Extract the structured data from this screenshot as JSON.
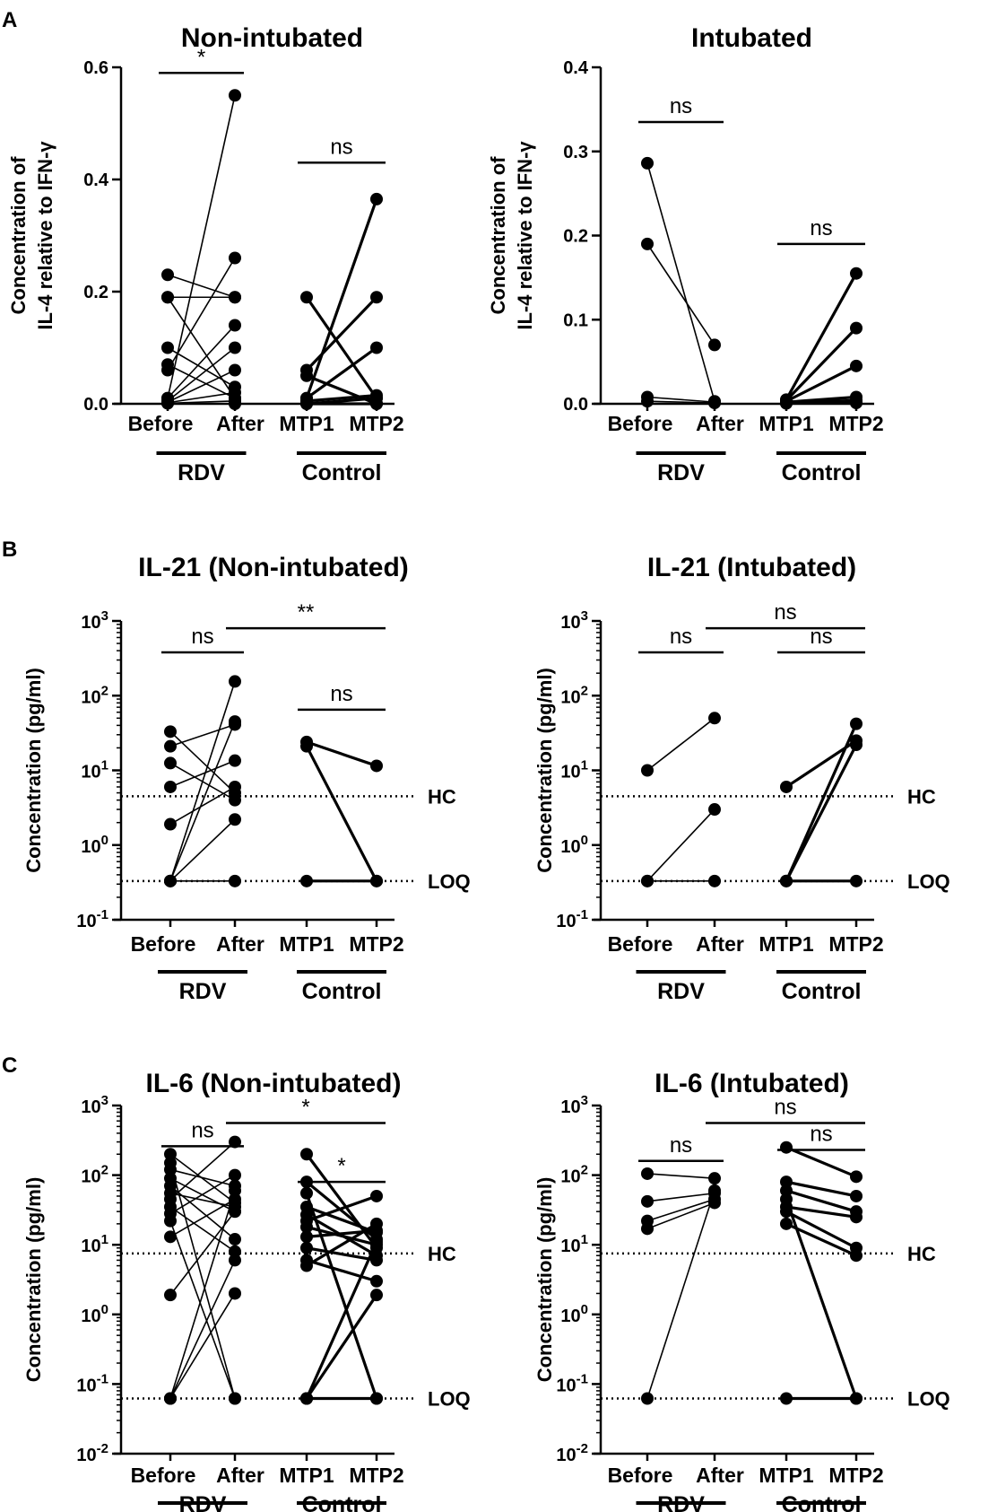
{
  "figure": {
    "panel_labels": [
      "A",
      "B",
      "C"
    ]
  },
  "common": {
    "x_ticks": [
      "Before",
      "After",
      "MTP1",
      "MTP2"
    ],
    "groups": [
      "RDV",
      "Control"
    ],
    "ylabel_ratio": [
      "Concentration of",
      "IL-4 relative to IFN-γ"
    ],
    "ylabel_conc": "Concentration (pg/ml)",
    "log_ticks": {
      "B": [
        {
          "base": "10",
          "exp": "-1"
        },
        {
          "base": "10",
          "exp": "0"
        },
        {
          "base": "10",
          "exp": "1"
        },
        {
          "base": "10",
          "exp": "2"
        },
        {
          "base": "10",
          "exp": "3"
        }
      ],
      "C": [
        {
          "base": "10",
          "exp": "-2"
        },
        {
          "base": "10",
          "exp": "-1"
        },
        {
          "base": "10",
          "exp": "0"
        },
        {
          "base": "10",
          "exp": "1"
        },
        {
          "base": "10",
          "exp": "2"
        },
        {
          "base": "10",
          "exp": "3"
        }
      ]
    },
    "ref_lines": {
      "hc": "HC",
      "loq": "LOQ"
    }
  },
  "chart_data": [
    {
      "id": "A-left",
      "type": "line",
      "title": "Non-intubated",
      "ylim": [
        0,
        0.6
      ],
      "yticks": [
        "0.0",
        "0.2",
        "0.4",
        "0.6"
      ],
      "rdv_pairs": [
        [
          0.23,
          0.19
        ],
        [
          0.19,
          0.01
        ],
        [
          0.19,
          0.19
        ],
        [
          0.1,
          0.03
        ],
        [
          0.07,
          0.01
        ],
        [
          0.06,
          0.26
        ],
        [
          0.01,
          0.14
        ],
        [
          0.01,
          0.55
        ],
        [
          0.005,
          0.1
        ],
        [
          0.003,
          0.06
        ],
        [
          0.002,
          0.02
        ],
        [
          0.001,
          0.005
        ],
        [
          0.001,
          0.0
        ]
      ],
      "control_pairs": [
        [
          0.19,
          0.01
        ],
        [
          0.06,
          0.19
        ],
        [
          0.05,
          0.0
        ],
        [
          0.01,
          0.365
        ],
        [
          0.01,
          0.1
        ],
        [
          0.005,
          0.015
        ],
        [
          0.0,
          0.01
        ],
        [
          0.0,
          0.0
        ]
      ],
      "comparisons": [
        {
          "label": "*",
          "between": [
            "Before",
            "After"
          ],
          "y": 0.59
        },
        {
          "label": "ns",
          "between": [
            "MTP1",
            "MTP2"
          ],
          "y": 0.43
        }
      ]
    },
    {
      "id": "A-right",
      "type": "line",
      "title": "Intubated",
      "ylim": [
        0,
        0.4
      ],
      "yticks": [
        "0.0",
        "0.1",
        "0.2",
        "0.3",
        "0.4"
      ],
      "rdv_pairs": [
        [
          0.286,
          0.003
        ],
        [
          0.19,
          0.07
        ],
        [
          0.008,
          0.002
        ],
        [
          0.003,
          0.001
        ]
      ],
      "control_pairs": [
        [
          0.005,
          0.155
        ],
        [
          0.004,
          0.09
        ],
        [
          0.003,
          0.045
        ],
        [
          0.002,
          0.008
        ],
        [
          0.001,
          0.004
        ],
        [
          0.001,
          0.002
        ],
        [
          0.0005,
          0.001
        ]
      ],
      "comparisons": [
        {
          "label": "ns",
          "between": [
            "Before",
            "After"
          ],
          "y": 0.335
        },
        {
          "label": "ns",
          "between": [
            "MTP1",
            "MTP2"
          ],
          "y": 0.19
        }
      ]
    },
    {
      "id": "B-left",
      "type": "line",
      "title": "IL-21 (Non-intubated)",
      "yscale": "log",
      "ylim": [
        0.1,
        1000
      ],
      "hc": 4.5,
      "loq": 0.33,
      "rdv_pairs": [
        [
          33,
          5
        ],
        [
          21,
          41
        ],
        [
          12.5,
          4
        ],
        [
          6,
          13.5
        ],
        [
          1.9,
          6
        ],
        [
          0.33,
          155
        ],
        [
          0.33,
          45
        ],
        [
          0.33,
          2.2
        ],
        [
          0.33,
          0.33
        ]
      ],
      "control_pairs": [
        [
          24,
          11.5
        ],
        [
          21,
          0.33
        ],
        [
          0.33,
          0.33
        ]
      ],
      "comparisons": [
        {
          "label": "ns",
          "between": [
            "Before",
            "After"
          ],
          "y": 380
        },
        {
          "label": "**",
          "between": [
            "After",
            "MTP2"
          ],
          "y": 800
        },
        {
          "label": "ns",
          "between": [
            "MTP1",
            "MTP2"
          ],
          "y": 65
        }
      ]
    },
    {
      "id": "B-right",
      "type": "line",
      "title": "IL-21 (Intubated)",
      "yscale": "log",
      "ylim": [
        0.1,
        1000
      ],
      "hc": 4.5,
      "loq": 0.33,
      "rdv_pairs": [
        [
          10,
          50
        ],
        [
          0.33,
          3
        ],
        [
          0.33,
          0.33
        ]
      ],
      "control_pairs": [
        [
          6,
          25
        ],
        [
          0.33,
          42
        ],
        [
          0.33,
          22
        ],
        [
          0.33,
          0.33
        ]
      ],
      "comparisons": [
        {
          "label": "ns",
          "between": [
            "Before",
            "After"
          ],
          "y": 380
        },
        {
          "label": "ns",
          "between": [
            "After",
            "MTP2"
          ],
          "y": 800
        },
        {
          "label": "ns",
          "between": [
            "MTP1",
            "MTP2"
          ],
          "y": 380
        }
      ]
    },
    {
      "id": "C-left",
      "type": "line",
      "title": "IL-6 (Non-intubated)",
      "yscale": "log",
      "ylim": [
        0.01,
        1000
      ],
      "hc": 7.5,
      "loq": 0.062,
      "rdv_pairs": [
        [
          200,
          40
        ],
        [
          150,
          0.062
        ],
        [
          120,
          70
        ],
        [
          90,
          30
        ],
        [
          70,
          12
        ],
        [
          55,
          35
        ],
        [
          45,
          300
        ],
        [
          35,
          8
        ],
        [
          28,
          100
        ],
        [
          22,
          0.062
        ],
        [
          13,
          45
        ],
        [
          1.9,
          30
        ],
        [
          0.062,
          60
        ],
        [
          0.062,
          6
        ],
        [
          0.062,
          2
        ]
      ],
      "control_pairs": [
        [
          200,
          9
        ],
        [
          80,
          12
        ],
        [
          55,
          0.062
        ],
        [
          35,
          15
        ],
        [
          27,
          7
        ],
        [
          22,
          50
        ],
        [
          18,
          10
        ],
        [
          13,
          16
        ],
        [
          9,
          6
        ],
        [
          6,
          3
        ],
        [
          5,
          20
        ],
        [
          0.062,
          11
        ],
        [
          0.062,
          1.9
        ],
        [
          0.062,
          0.062
        ]
      ],
      "comparisons": [
        {
          "label": "ns",
          "between": [
            "Before",
            "After"
          ],
          "y": 260
        },
        {
          "label": "*",
          "between": [
            "After",
            "MTP2"
          ],
          "y": 560
        },
        {
          "label": "*",
          "between": [
            "MTP1",
            "MTP2"
          ],
          "y": 80
        }
      ]
    },
    {
      "id": "C-right",
      "type": "line",
      "title": "IL-6 (Intubated)",
      "yscale": "log",
      "ylim": [
        0.01,
        1000
      ],
      "hc": 7.5,
      "loq": 0.062,
      "rdv_pairs": [
        [
          105,
          90
        ],
        [
          42,
          55
        ],
        [
          22,
          45
        ],
        [
          17,
          40
        ],
        [
          0.062,
          60
        ]
      ],
      "control_pairs": [
        [
          250,
          95
        ],
        [
          80,
          50
        ],
        [
          60,
          30
        ],
        [
          30,
          9
        ],
        [
          20,
          7
        ],
        [
          0.062,
          0.062
        ],
        [
          45,
          0.062
        ],
        [
          35,
          25
        ]
      ],
      "comparisons": [
        {
          "label": "ns",
          "between": [
            "Before",
            "After"
          ],
          "y": 160
        },
        {
          "label": "ns",
          "between": [
            "After",
            "MTP2"
          ],
          "y": 560
        },
        {
          "label": "ns",
          "between": [
            "MTP1",
            "MTP2"
          ],
          "y": 230
        }
      ]
    }
  ]
}
